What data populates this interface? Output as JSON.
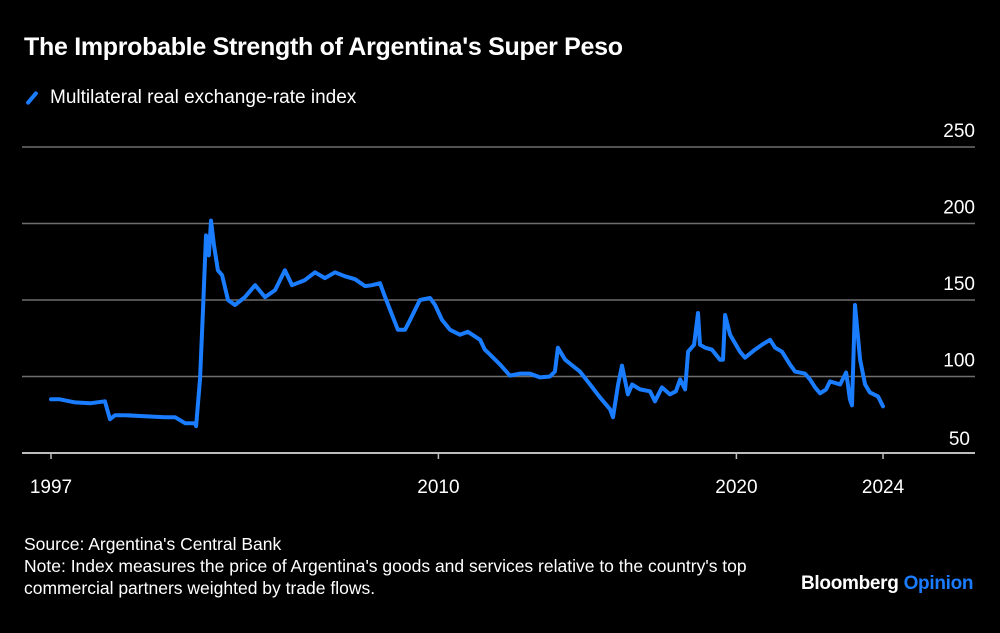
{
  "chart_data": {
    "type": "line",
    "title": "The Improbable Strength of Argentina's Super Peso",
    "legend": [
      {
        "name": "Multilateral real exchange-rate index",
        "color": "#1a7cff"
      }
    ],
    "legend_placement": "top-left",
    "y_axis": {
      "position": "right",
      "ylim": [
        50,
        250
      ],
      "ticks": [
        50,
        100,
        150,
        200,
        250
      ]
    },
    "x_axis": {
      "ticks": [
        {
          "value": 1997,
          "label": "1997"
        },
        {
          "value": 2010,
          "label": "2010"
        },
        {
          "value": 2020,
          "label": "2020"
        },
        {
          "value": 2024.92,
          "label": "2024"
        }
      ]
    },
    "grid": "horizontal",
    "series": [
      {
        "name": "Multilateral real exchange-rate index",
        "color": "#1a7cff",
        "points": [
          [
            1997.0,
            85.1
          ],
          [
            1997.3,
            85.1
          ],
          [
            1997.81,
            83.1
          ],
          [
            1998.31,
            82.5
          ],
          [
            1998.81,
            83.8
          ],
          [
            1998.98,
            72.1
          ],
          [
            1999.15,
            74.7
          ],
          [
            1999.48,
            74.7
          ],
          [
            2000.15,
            74.0
          ],
          [
            2000.83,
            73.4
          ],
          [
            2001.16,
            73.4
          ],
          [
            2001.5,
            69.5
          ],
          [
            2001.83,
            69.5
          ],
          [
            2001.87,
            67.6
          ],
          [
            2002.0,
            98.1
          ],
          [
            2002.1,
            143.5
          ],
          [
            2002.2,
            192.2
          ],
          [
            2002.3,
            179.2
          ],
          [
            2002.37,
            201.9
          ],
          [
            2002.47,
            185.7
          ],
          [
            2002.6,
            169.4
          ],
          [
            2002.74,
            166.2
          ],
          [
            2002.94,
            150.0
          ],
          [
            2003.17,
            146.7
          ],
          [
            2003.51,
            151.9
          ],
          [
            2003.85,
            159.7
          ],
          [
            2004.18,
            151.9
          ],
          [
            2004.52,
            156.5
          ],
          [
            2004.85,
            169.4
          ],
          [
            2005.09,
            159.7
          ],
          [
            2005.52,
            163.0
          ],
          [
            2005.86,
            168.1
          ],
          [
            2006.19,
            164.3
          ],
          [
            2006.53,
            168.1
          ],
          [
            2006.87,
            165.5
          ],
          [
            2007.2,
            163.6
          ],
          [
            2007.54,
            159.1
          ],
          [
            2007.77,
            159.7
          ],
          [
            2008.04,
            161.0
          ],
          [
            2008.21,
            151.9
          ],
          [
            2008.38,
            143.5
          ],
          [
            2008.64,
            130.5
          ],
          [
            2008.88,
            130.5
          ],
          [
            2009.05,
            137.0
          ],
          [
            2009.38,
            150.0
          ],
          [
            2009.72,
            151.3
          ],
          [
            2009.89,
            146.7
          ],
          [
            2010.12,
            137.0
          ],
          [
            2010.39,
            130.5
          ],
          [
            2010.72,
            127.3
          ],
          [
            2010.99,
            129.2
          ],
          [
            2011.4,
            124.0
          ],
          [
            2011.56,
            117.5
          ],
          [
            2011.73,
            114.3
          ],
          [
            2012.07,
            107.8
          ],
          [
            2012.4,
            100.6
          ],
          [
            2012.74,
            101.9
          ],
          [
            2013.07,
            101.9
          ],
          [
            2013.41,
            99.4
          ],
          [
            2013.74,
            100.0
          ],
          [
            2013.91,
            103.2
          ],
          [
            2014.01,
            118.8
          ],
          [
            2014.25,
            111.0
          ],
          [
            2014.58,
            105.8
          ],
          [
            2014.75,
            103.2
          ],
          [
            2015.09,
            94.8
          ],
          [
            2015.42,
            86.4
          ],
          [
            2015.76,
            78.6
          ],
          [
            2015.86,
            73.4
          ],
          [
            2016.03,
            94.8
          ],
          [
            2016.16,
            107.1
          ],
          [
            2016.36,
            88.3
          ],
          [
            2016.5,
            94.8
          ],
          [
            2016.77,
            91.6
          ],
          [
            2017.1,
            90.3
          ],
          [
            2017.27,
            83.8
          ],
          [
            2017.5,
            92.9
          ],
          [
            2017.77,
            88.3
          ],
          [
            2017.97,
            90.3
          ],
          [
            2018.11,
            98.1
          ],
          [
            2018.28,
            91.6
          ],
          [
            2018.38,
            116.2
          ],
          [
            2018.58,
            120.8
          ],
          [
            2018.71,
            141.5
          ],
          [
            2018.78,
            120.8
          ],
          [
            2018.95,
            118.8
          ],
          [
            2019.18,
            117.5
          ],
          [
            2019.45,
            111.0
          ],
          [
            2019.55,
            111.0
          ],
          [
            2019.62,
            140.2
          ],
          [
            2019.79,
            127.3
          ],
          [
            2020.12,
            116.2
          ],
          [
            2020.29,
            112.3
          ],
          [
            2020.62,
            117.5
          ],
          [
            2020.86,
            120.8
          ],
          [
            2021.13,
            124.0
          ],
          [
            2021.3,
            118.8
          ],
          [
            2021.53,
            116.2
          ],
          [
            2021.8,
            107.8
          ],
          [
            2021.97,
            103.2
          ],
          [
            2022.3,
            101.9
          ],
          [
            2022.47,
            98.1
          ],
          [
            2022.64,
            92.9
          ],
          [
            2022.81,
            89.0
          ],
          [
            2023.01,
            91.6
          ],
          [
            2023.14,
            96.8
          ],
          [
            2023.48,
            94.8
          ],
          [
            2023.68,
            102.6
          ],
          [
            2023.74,
            94.8
          ],
          [
            2023.81,
            85.1
          ],
          [
            2023.88,
            81.2
          ],
          [
            2023.98,
            146.7
          ],
          [
            2024.15,
            111.0
          ],
          [
            2024.32,
            94.8
          ],
          [
            2024.48,
            89.6
          ],
          [
            2024.75,
            87.0
          ],
          [
            2024.92,
            80.5
          ]
        ]
      }
    ]
  },
  "footer": {
    "source": "Source: Argentina's Central Bank",
    "note": "Note: Index measures the price of Argentina's goods and services relative to the country's top commercial partners weighted by trade flows.",
    "logo": {
      "brand": "Bloomberg",
      "section": "Opinion"
    }
  }
}
